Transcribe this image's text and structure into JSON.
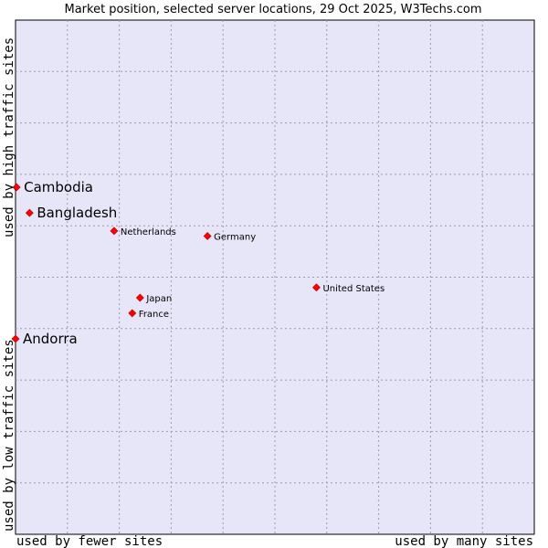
{
  "chart_data": {
    "type": "scatter",
    "title": "Market position, selected server locations, 29 Oct 2025, W3Techs.com",
    "xlabel_left": "used by fewer sites",
    "xlabel_right": "used by many sites",
    "ylabel_top": "used by high traffic sites",
    "ylabel_bottom": "used by low traffic sites",
    "xlim": [
      0,
      10
    ],
    "ylim": [
      0,
      10
    ],
    "grid": true,
    "marker_color": "#ff0000",
    "plot_background": "#e6e6f8",
    "points": [
      {
        "name": "Cambodia",
        "x": 0.02,
        "y": 6.75,
        "emphasis": true
      },
      {
        "name": "Bangladesh",
        "x": 0.27,
        "y": 6.25,
        "emphasis": true
      },
      {
        "name": "Andorra",
        "x": 0.0,
        "y": 3.8,
        "emphasis": true
      },
      {
        "name": "Netherlands",
        "x": 1.9,
        "y": 5.9,
        "emphasis": false
      },
      {
        "name": "Germany",
        "x": 3.7,
        "y": 5.8,
        "emphasis": false
      },
      {
        "name": "United States",
        "x": 5.8,
        "y": 4.8,
        "emphasis": false
      },
      {
        "name": "Japan",
        "x": 2.4,
        "y": 4.6,
        "emphasis": false
      },
      {
        "name": "France",
        "x": 2.25,
        "y": 4.3,
        "emphasis": false
      }
    ]
  }
}
